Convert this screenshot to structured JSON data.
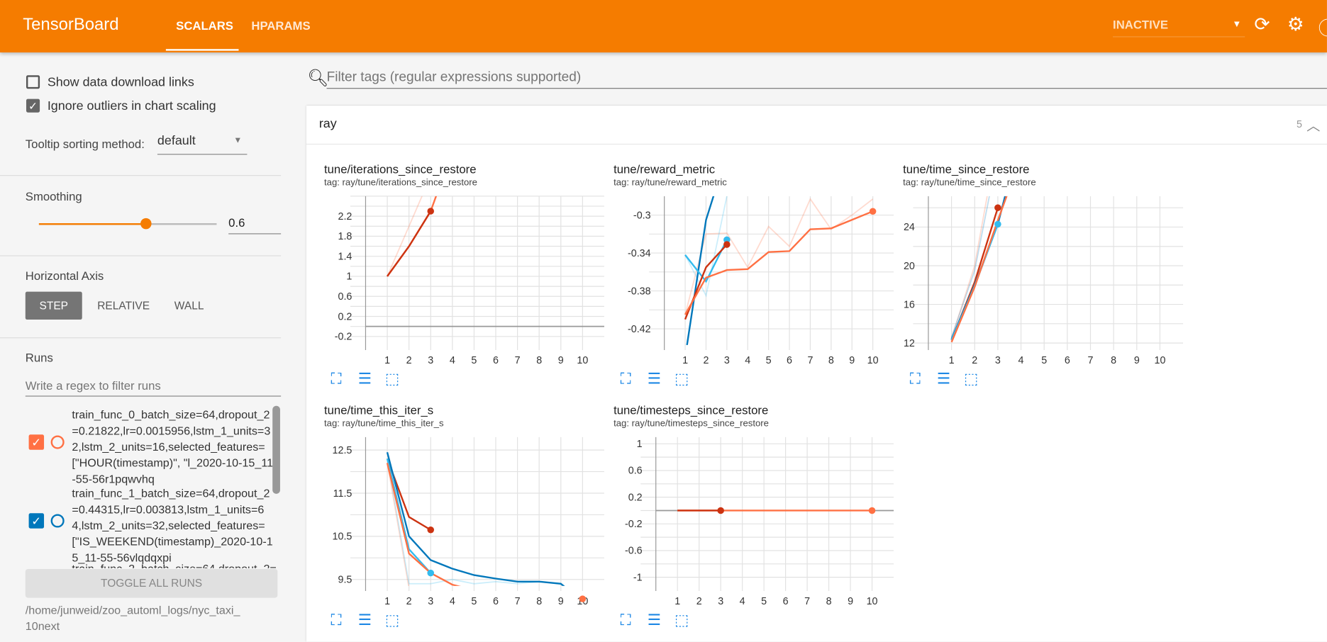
{
  "header": {
    "brand": "TensorBoard",
    "tabs": [
      "SCALARS",
      "HPARAMS"
    ],
    "active_tab": "SCALARS",
    "status_select": "INACTIVE",
    "accent": "#f57c00"
  },
  "sidebar": {
    "show_download_links": {
      "label": "Show data download links",
      "checked": false
    },
    "ignore_outliers": {
      "label": "Ignore outliers in chart scaling",
      "checked": true
    },
    "tooltip_sorting": {
      "label": "Tooltip sorting method:",
      "value": "default"
    },
    "smoothing": {
      "label": "Smoothing",
      "value": "0.6",
      "fraction": 0.6
    },
    "horizontal_axis": {
      "label": "Horizontal Axis",
      "options": [
        "STEP",
        "RELATIVE",
        "WALL"
      ],
      "selected": "STEP"
    },
    "runs": {
      "label": "Runs",
      "filter_placeholder": "Write a regex to filter runs",
      "items": [
        {
          "name": "train_func_0_batch_size=64,dropout_2=0.21822,lr=0.0015956,lstm_1_units=32,lstm_2_units=16,selected_features=[\"HOUR(timestamp)\", \"l_2020-10-15_11-55-56r1pqwvhq",
          "color": "#ff7043",
          "checked": true
        },
        {
          "name": "train_func_1_batch_size=64,dropout_2=0.44315,lr=0.003813,lstm_1_units=64,lstm_2_units=32,selected_features=[\"IS_WEEKEND(timestamp)_2020-10-15_11-55-56vlqdqxpi",
          "color": "#0077bb",
          "checked": true
        },
        {
          "name": "train_func_2_batch_size=64,dropout_2=",
          "color": "#cc3311",
          "checked": true
        }
      ],
      "toggle_all": "TOGGLE ALL RUNS",
      "logdir": "/home/junweid/zoo_automl_logs/nyc_taxi_10next"
    }
  },
  "main": {
    "filter_placeholder": "Filter tags (regular expressions supported)",
    "group": {
      "name": "ray",
      "count": "5"
    }
  },
  "chart_data": [
    {
      "type": "line",
      "title": "tune/iterations_since_restore",
      "tag": "tag: ray/tune/iterations_since_restore",
      "xlim": [
        0,
        11
      ],
      "ylim": [
        -0.37,
        2.6
      ],
      "xticks": [
        1,
        2,
        3,
        4,
        5,
        6,
        7,
        8,
        9,
        10
      ],
      "yticks": [
        -0.2,
        0.2,
        0.6,
        1,
        1.4,
        1.8,
        2.2
      ],
      "grid": true,
      "series": [
        {
          "color": "#ff7043",
          "faint": true,
          "points": [
            [
              1,
              1
            ],
            [
              2,
              2
            ],
            [
              3,
              3
            ]
          ]
        },
        {
          "color": "#ff7043",
          "points": [
            [
              1,
              1
            ],
            [
              2,
              1.6
            ],
            [
              3,
              2.3
            ],
            [
              3.5,
              2.9
            ]
          ]
        },
        {
          "color": "#cc3311",
          "points": [
            [
              1,
              1
            ],
            [
              2,
              1.6
            ],
            [
              3,
              2.3
            ]
          ],
          "end_dot": true
        }
      ]
    },
    {
      "type": "line",
      "title": "tune/reward_metric",
      "tag": "tag: ray/tune/reward_metric",
      "xlim": [
        0,
        11
      ],
      "ylim": [
        -0.437,
        -0.28
      ],
      "xticks": [
        1,
        2,
        3,
        4,
        5,
        6,
        7,
        8,
        9,
        10
      ],
      "yticks": [
        -0.42,
        -0.38,
        -0.34,
        -0.3
      ],
      "grid": true,
      "series": [
        {
          "color": "#ff7043",
          "faint": true,
          "points": [
            [
              1,
              -0.405
            ],
            [
              2,
              -0.32
            ],
            [
              3,
              -0.319
            ],
            [
              4,
              -0.355
            ],
            [
              5,
              -0.312
            ],
            [
              6,
              -0.333
            ],
            [
              7,
              -0.283
            ],
            [
              8,
              -0.315
            ],
            [
              9,
              -0.3
            ],
            [
              10,
              -0.283
            ]
          ]
        },
        {
          "color": "#33bbee",
          "faint": true,
          "points": [
            [
              1,
              -0.342
            ],
            [
              2,
              -0.385
            ],
            [
              3,
              -0.28
            ]
          ]
        },
        {
          "color": "#0077bb",
          "points": [
            [
              1,
              -0.45
            ],
            [
              2,
              -0.305
            ],
            [
              2.5,
              -0.27
            ]
          ]
        },
        {
          "color": "#33bbee",
          "points": [
            [
              1,
              -0.342
            ],
            [
              2,
              -0.37
            ],
            [
              3,
              -0.326
            ]
          ],
          "end_dot": true
        },
        {
          "color": "#cc3311",
          "points": [
            [
              1,
              -0.41
            ],
            [
              2,
              -0.355
            ],
            [
              3,
              -0.331
            ]
          ],
          "end_dot": true
        },
        {
          "color": "#ff7043",
          "points": [
            [
              1,
              -0.405
            ],
            [
              2,
              -0.366
            ],
            [
              3,
              -0.358
            ],
            [
              4,
              -0.357
            ],
            [
              5,
              -0.339
            ],
            [
              6,
              -0.338
            ],
            [
              7,
              -0.315
            ],
            [
              8,
              -0.314
            ],
            [
              9,
              -0.305
            ],
            [
              10,
              -0.296
            ]
          ],
          "end_dot": true
        }
      ]
    },
    {
      "type": "line",
      "title": "tune/time_since_restore",
      "tag": "tag: ray/tune/time_since_restore",
      "xlim": [
        0,
        11
      ],
      "ylim": [
        11.8,
        27.2
      ],
      "xticks": [
        1,
        2,
        3,
        4,
        5,
        6,
        7,
        8,
        9,
        10
      ],
      "yticks": [
        12,
        16,
        20,
        24
      ],
      "grid": true,
      "series": [
        {
          "color": "#ff7043",
          "faint": true,
          "points": [
            [
              1,
              12.5
            ],
            [
              2,
              20
            ],
            [
              2.6,
              28
            ]
          ]
        },
        {
          "color": "#0077bb",
          "faint": true,
          "points": [
            [
              1,
              12.6
            ],
            [
              2,
              19.5
            ],
            [
              2.7,
              28
            ]
          ]
        },
        {
          "color": "#cc3311",
          "points": [
            [
              1,
              12.3
            ],
            [
              2,
              18.3
            ],
            [
              3,
              26
            ]
          ],
          "end_dot": true
        },
        {
          "color": "#0077bb",
          "points": [
            [
              1,
              12.4
            ],
            [
              2,
              18
            ],
            [
              3,
              24.3
            ],
            [
              3.4,
              28
            ]
          ]
        },
        {
          "color": "#33bbee",
          "points": [
            [
              1,
              12.3
            ],
            [
              2,
              17.9
            ],
            [
              3,
              24.3
            ]
          ],
          "end_dot": true
        },
        {
          "color": "#ff7043",
          "points": [
            [
              1,
              12.1
            ],
            [
              2,
              17.8
            ],
            [
              3,
              24.7
            ],
            [
              3.5,
              28
            ]
          ]
        }
      ]
    },
    {
      "type": "line",
      "title": "tune/time_this_iter_s",
      "tag": "tag: ray/tune/time_this_iter_s",
      "xlim": [
        0,
        11
      ],
      "ylim": [
        9.35,
        12.8
      ],
      "xticks": [
        1,
        2,
        3,
        4,
        5,
        6,
        7,
        8,
        9,
        10
      ],
      "yticks": [
        9.5,
        10.5,
        11.5,
        12.5
      ],
      "grid": true,
      "series": [
        {
          "color": "#ff7043",
          "faint": true,
          "points": [
            [
              1,
              12.2
            ],
            [
              2,
              9.3
            ],
            [
              3,
              9.1
            ],
            [
              4,
              9.1
            ],
            [
              5,
              9.05
            ],
            [
              6,
              9.15
            ],
            [
              7,
              9.1
            ],
            [
              8,
              9.0
            ],
            [
              9,
              9.0
            ],
            [
              10,
              9.0
            ]
          ]
        },
        {
          "color": "#33bbee",
          "faint": true,
          "points": [
            [
              1,
              12.3
            ],
            [
              2,
              9.4
            ],
            [
              3,
              9.4
            ],
            [
              4,
              9.5
            ],
            [
              5,
              9.4
            ],
            [
              6,
              9.45
            ],
            [
              7,
              9.4
            ],
            [
              8,
              9.45
            ]
          ]
        },
        {
          "color": "#cc3311",
          "points": [
            [
              1,
              12.3
            ],
            [
              2,
              10.95
            ],
            [
              3,
              10.65
            ]
          ],
          "end_dot": true
        },
        {
          "color": "#0077bb",
          "points": [
            [
              1,
              12.45
            ],
            [
              2,
              10.5
            ],
            [
              3,
              9.95
            ],
            [
              4,
              9.75
            ],
            [
              5,
              9.6
            ],
            [
              6,
              9.52
            ],
            [
              7,
              9.45
            ],
            [
              8,
              9.45
            ],
            [
              9,
              9.4
            ],
            [
              10,
              9.0
            ]
          ]
        },
        {
          "color": "#33bbee",
          "points": [
            [
              1,
              12.3
            ],
            [
              2,
              10.2
            ],
            [
              3,
              9.65
            ]
          ],
          "end_dot": true
        },
        {
          "color": "#ff7043",
          "points": [
            [
              1,
              12.2
            ],
            [
              2,
              10.1
            ],
            [
              3,
              9.65
            ],
            [
              4,
              9.38
            ],
            [
              5,
              9.25
            ],
            [
              6,
              9.15
            ],
            [
              7,
              9.15
            ],
            [
              8,
              9.1
            ],
            [
              9,
              9.06
            ],
            [
              10,
              9.05
            ]
          ],
          "end_dot": true
        }
      ]
    },
    {
      "type": "line",
      "title": "tune/timesteps_since_restore",
      "tag": "tag: ray/tune/timesteps_since_restore",
      "xlim": [
        0,
        11
      ],
      "ylim": [
        -1.13,
        1.1
      ],
      "xticks": [
        1,
        2,
        3,
        4,
        5,
        6,
        7,
        8,
        9,
        10
      ],
      "yticks": [
        -1,
        -0.6,
        -0.2,
        0.2,
        0.6,
        1
      ],
      "grid": true,
      "series": [
        {
          "color": "#ff7043",
          "points": [
            [
              1,
              0
            ],
            [
              2,
              0
            ],
            [
              3,
              0
            ],
            [
              4,
              0
            ],
            [
              5,
              0
            ],
            [
              6,
              0
            ],
            [
              7,
              0
            ],
            [
              8,
              0
            ],
            [
              9,
              0
            ],
            [
              10,
              0
            ]
          ],
          "end_dot": true
        },
        {
          "color": "#cc3311",
          "points": [
            [
              1,
              0
            ],
            [
              2,
              0
            ],
            [
              3,
              0
            ]
          ],
          "end_dot": true
        }
      ]
    }
  ]
}
